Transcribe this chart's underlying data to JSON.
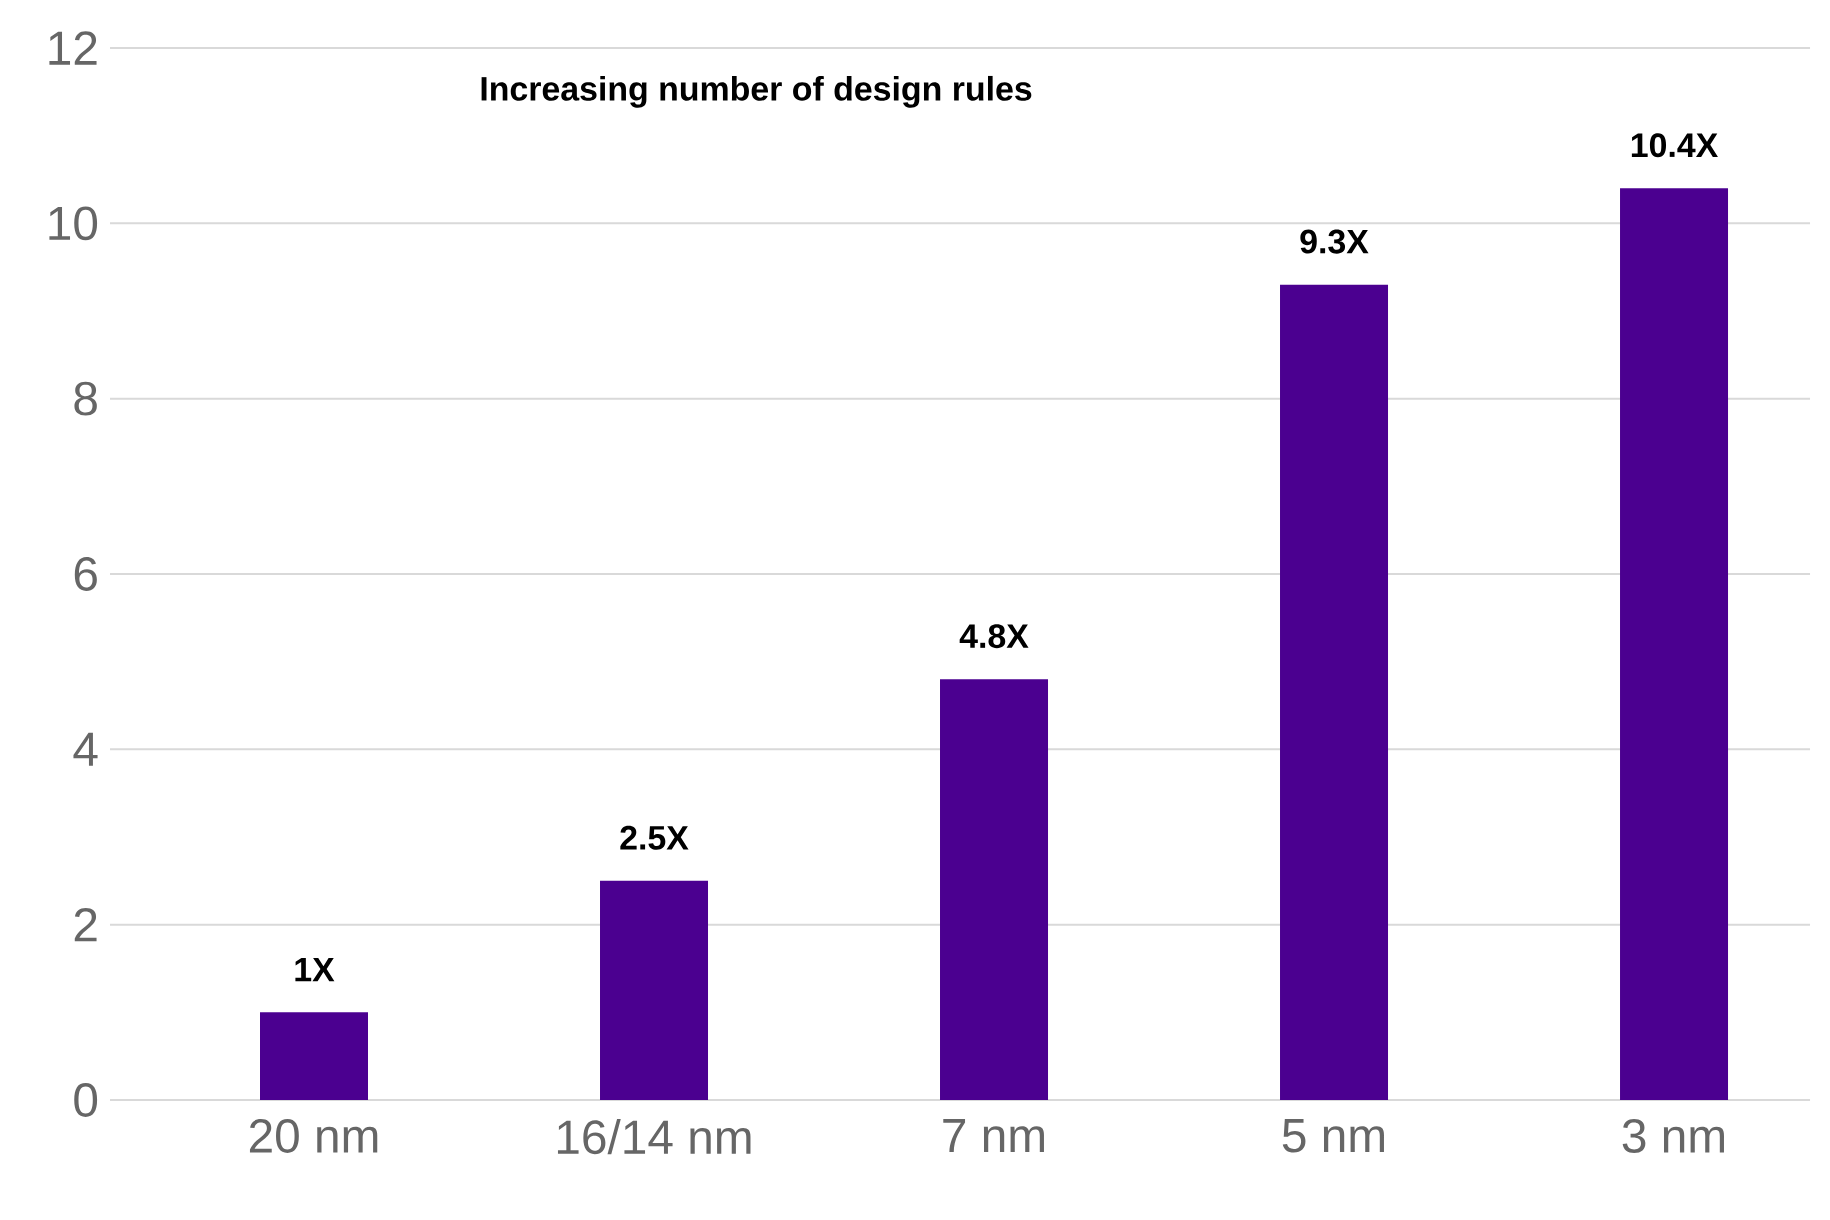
{
  "chart_data": {
    "type": "bar",
    "title": "Increasing number of design rules",
    "categories": [
      "20 nm",
      "16/14 nm",
      "7 nm",
      "5 nm",
      "3 nm"
    ],
    "values": [
      1,
      2.5,
      4.8,
      9.3,
      10.4
    ],
    "value_labels": [
      "1X",
      "2.5X",
      "4.8X",
      "9.3X",
      "10.4X"
    ],
    "color": "#4b0090",
    "ylim": [
      0,
      12
    ],
    "yticks": [
      0,
      2,
      4,
      6,
      8,
      10,
      12
    ],
    "grid": "y"
  }
}
